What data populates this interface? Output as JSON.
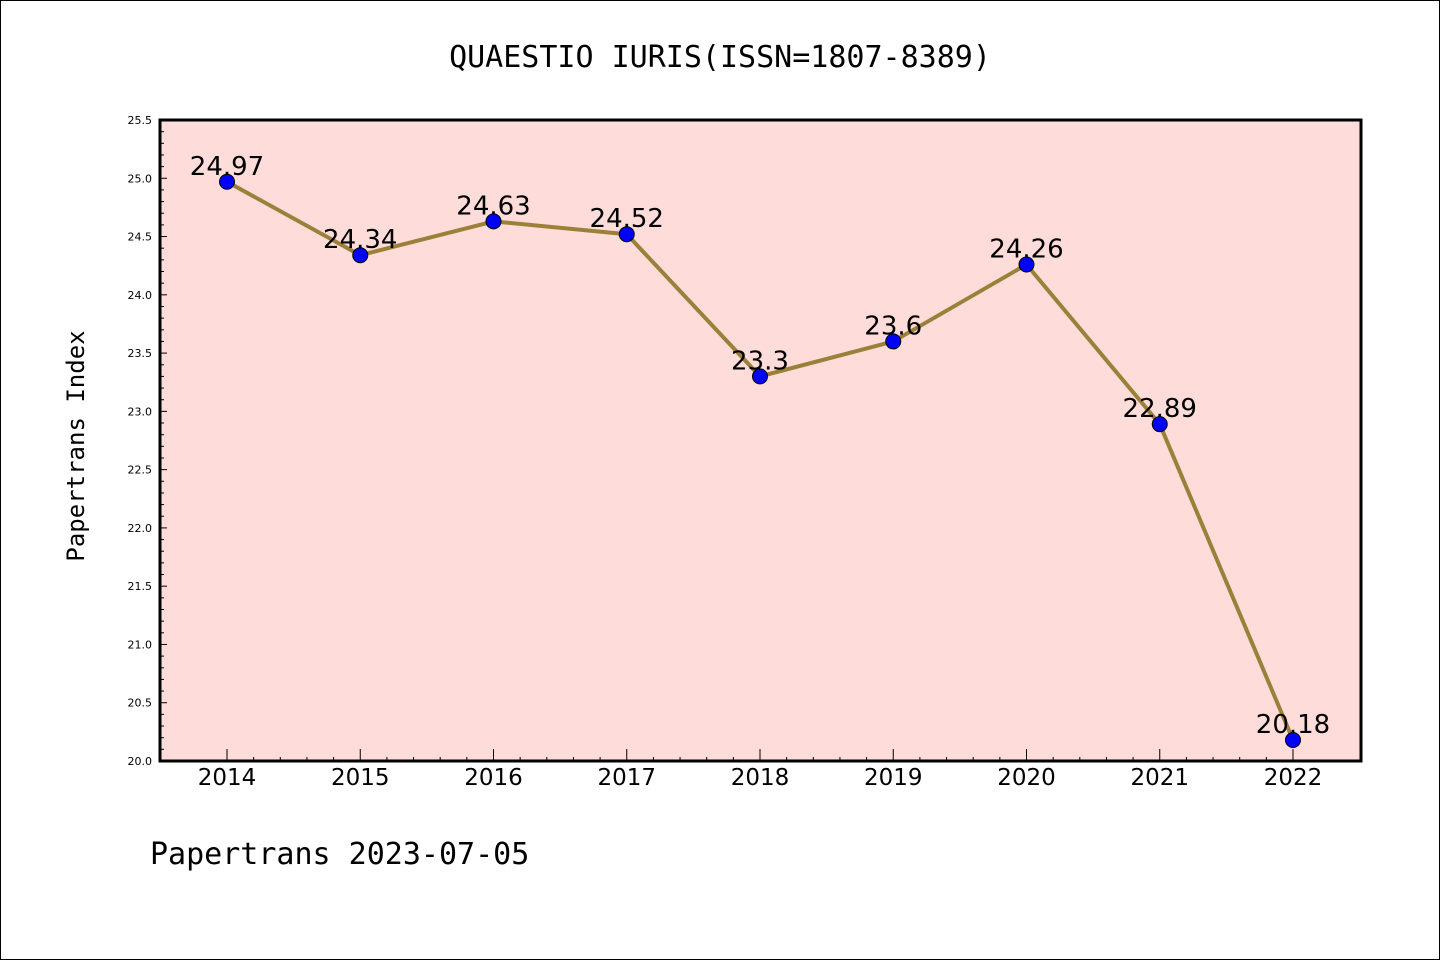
{
  "chart_data": {
    "type": "line",
    "title": "QUAESTIO IURIS(ISSN=1807-8389)",
    "xlabel": "",
    "ylabel": "Papertrans Index",
    "categories": [
      "2014",
      "2015",
      "2016",
      "2017",
      "2018",
      "2019",
      "2020",
      "2021",
      "2022"
    ],
    "values": [
      24.97,
      24.34,
      24.63,
      24.52,
      23.3,
      23.6,
      24.26,
      22.89,
      20.18
    ],
    "value_labels": [
      "24.97",
      "24.34",
      "24.63",
      "24.52",
      "23.3",
      "23.6",
      "24.26",
      "22.89",
      "20.18"
    ],
    "ylim": [
      20.0,
      25.5
    ],
    "yticks": [
      "20.0",
      "20.5",
      "21.0",
      "21.5",
      "22.0",
      "22.5",
      "23.0",
      "23.5",
      "24.0",
      "24.5",
      "25.0",
      "25.5"
    ],
    "grid": false,
    "legend": "none",
    "colors": {
      "plot_background": "#fddcd9",
      "line": "#9a8038",
      "marker": "#0000ff"
    }
  },
  "footer": {
    "text": "Papertrans 2023-07-05"
  }
}
